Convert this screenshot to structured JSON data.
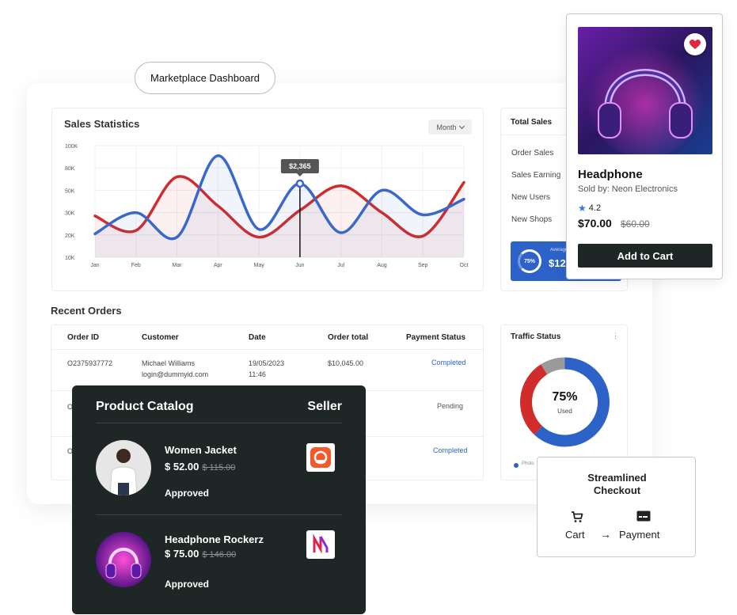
{
  "pill": {
    "label": "Marketplace Dashboard"
  },
  "sales": {
    "title": "Sales Statistics",
    "month_label": "Month"
  },
  "chart_data": {
    "type": "line",
    "title": "Sales Statistics",
    "categories": [
      "Jan",
      "Feb",
      "Mar",
      "Apr",
      "May",
      "Jun",
      "Jul",
      "Aug",
      "Sep",
      "Oct"
    ],
    "y_ticks": [
      "100K",
      "80K",
      "50K",
      "30K",
      "20K",
      "10K"
    ],
    "tooltip": {
      "category": "Jun",
      "label": "$2,365"
    },
    "grid": true,
    "series": [
      {
        "color": "#d22b2b",
        "values": [
          37,
          24,
          72,
          46,
          18,
          42,
          64,
          40,
          19,
          67
        ]
      },
      {
        "color": "#3a68c9",
        "values": [
          21,
          40,
          18,
          91,
          25,
          66,
          22,
          60,
          38,
          52
        ]
      }
    ]
  },
  "total_sales": {
    "title": "Total Sales",
    "items": [
      "Order Sales",
      "Sales Earning",
      "New Users",
      "New Shops"
    ],
    "avg_label": "Average",
    "avg_ring": "75%",
    "avg_value": "$12,"
  },
  "orders": {
    "title": "Recent Orders",
    "headers": [
      "Order ID",
      "Customer",
      "Date",
      "Order total",
      "Payment Status"
    ],
    "rows": [
      {
        "id": "O2375937772",
        "customer": "Michael Williams",
        "email": "login@dummyid.com",
        "date": "19/05/2023",
        "time": "11:46",
        "total": "$10,045.00",
        "status": "Completed"
      },
      {
        "id": "O",
        "status": "Pending"
      },
      {
        "id": "O",
        "status": "Completed"
      }
    ]
  },
  "traffic": {
    "title": "Traffic Status",
    "value": "75%",
    "label": "Used",
    "legend": "Photo",
    "segments": [
      {
        "value": 62,
        "color": "#2d63c8"
      },
      {
        "value": 29,
        "color": "#d22b2b"
      },
      {
        "value": 9,
        "color": "#9a9a9a"
      }
    ]
  },
  "product": {
    "name": "Headphone",
    "seller": "Sold by: Neon Electronics",
    "rating": "4.2",
    "price": "$70.00",
    "old_price": "$60.00",
    "cart_label": "Add to Cart"
  },
  "catalog": {
    "title": "Product Catalog",
    "seller_header": "Seller",
    "items": [
      {
        "name": "Women Jacket",
        "price": "$ 52.00",
        "old_price": "$ 115.00",
        "status": "Approved"
      },
      {
        "name": "Headphone Rockerz",
        "price": "$ 75.00",
        "old_price": "$ 146.00",
        "status": "Approved"
      }
    ]
  },
  "checkout": {
    "title_line1": "Streamlined",
    "title_line2": "Checkout",
    "cart_label": "Cart",
    "payment_label": "Payment"
  },
  "icons": [
    "heart-icon",
    "star-icon",
    "cart-icon",
    "payment-card-icon",
    "arrow-right-icon",
    "chevron-down-icon",
    "kebab-icon"
  ]
}
